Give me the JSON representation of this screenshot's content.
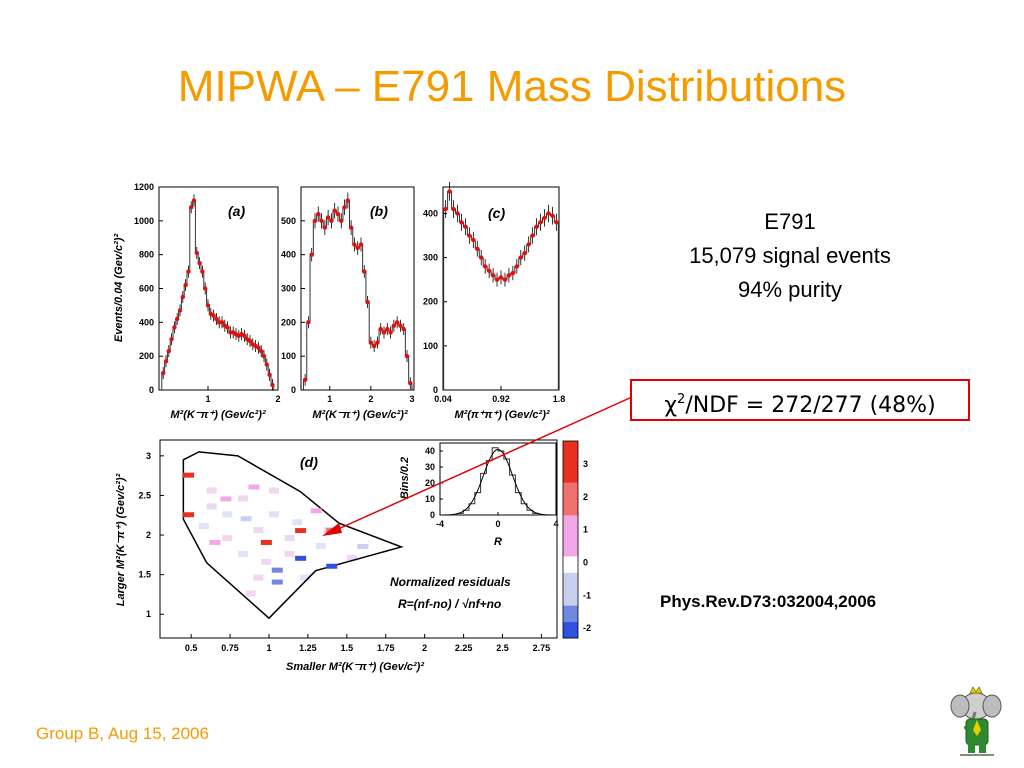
{
  "slide": {
    "title": "MIPWA – E791 Mass Distributions",
    "info_lines": [
      "E791",
      "15,079 signal events",
      "94% purity"
    ],
    "chi2_text": "/NDF = 272/277 (48%)",
    "chi2_symbol": "χ",
    "chi2_exp": "2",
    "reference": "Phys.Rev.D73:032004,2006",
    "footer": "Group B, Aug 15, 2006",
    "mascot_icon": "elephant-mascot-icon",
    "title_color": "#f59b00",
    "highlight_color": "#e00000"
  },
  "chart_data": [
    {
      "type": "histogram",
      "panel_label": "(a)",
      "ylabel": "Events/0.04 (Gev/c²)²",
      "xlabel": "M²(K⁻π⁺) (Gev/c²)²",
      "xlim": [
        0.3,
        2.0
      ],
      "ylim": [
        0,
        1200
      ],
      "xticks": [
        1,
        2
      ],
      "yticks": [
        0,
        200,
        400,
        600,
        800,
        1000,
        1200
      ],
      "x": [
        0.36,
        0.4,
        0.44,
        0.48,
        0.52,
        0.56,
        0.6,
        0.64,
        0.68,
        0.72,
        0.76,
        0.8,
        0.84,
        0.88,
        0.92,
        0.96,
        1.0,
        1.04,
        1.08,
        1.12,
        1.16,
        1.2,
        1.24,
        1.28,
        1.32,
        1.36,
        1.4,
        1.44,
        1.48,
        1.52,
        1.56,
        1.6,
        1.64,
        1.68,
        1.72,
        1.76,
        1.8,
        1.84,
        1.88,
        1.92
      ],
      "values": [
        100,
        170,
        230,
        300,
        370,
        420,
        470,
        550,
        620,
        700,
        1080,
        1120,
        810,
        750,
        700,
        600,
        500,
        450,
        440,
        420,
        400,
        400,
        380,
        370,
        340,
        340,
        330,
        320,
        330,
        320,
        300,
        290,
        270,
        260,
        250,
        230,
        200,
        150,
        90,
        30
      ]
    },
    {
      "type": "histogram",
      "panel_label": "(b)",
      "ylabel": "",
      "xlabel": "M²(K⁻π⁺) (Gev/c²)²",
      "xlim": [
        0.3,
        3.05
      ],
      "ylim": [
        0,
        600
      ],
      "xticks": [
        1,
        2,
        3
      ],
      "yticks": [
        0,
        100,
        200,
        300,
        400,
        500
      ],
      "x": [
        0.4,
        0.48,
        0.56,
        0.64,
        0.72,
        0.8,
        0.88,
        0.96,
        1.04,
        1.12,
        1.2,
        1.28,
        1.36,
        1.44,
        1.52,
        1.6,
        1.68,
        1.76,
        1.84,
        1.92,
        2.0,
        2.08,
        2.16,
        2.24,
        2.32,
        2.4,
        2.48,
        2.56,
        2.64,
        2.72,
        2.8,
        2.88,
        2.96
      ],
      "values": [
        30,
        200,
        400,
        500,
        520,
        500,
        480,
        510,
        500,
        530,
        520,
        500,
        540,
        560,
        480,
        430,
        420,
        430,
        350,
        260,
        140,
        130,
        140,
        180,
        170,
        180,
        170,
        190,
        200,
        190,
        180,
        100,
        20
      ]
    },
    {
      "type": "histogram",
      "panel_label": "(c)",
      "ylabel": "",
      "xlabel": "M²(π⁺π⁺) (Gev/c²)²",
      "xlim": [
        0.04,
        1.8
      ],
      "ylim": [
        0,
        460
      ],
      "xticks": [
        0.04,
        0.92,
        1.8
      ],
      "yticks": [
        0,
        100,
        200,
        300,
        400
      ],
      "x": [
        0.08,
        0.14,
        0.2,
        0.26,
        0.32,
        0.38,
        0.44,
        0.5,
        0.56,
        0.62,
        0.68,
        0.74,
        0.8,
        0.86,
        0.92,
        0.98,
        1.04,
        1.1,
        1.16,
        1.22,
        1.28,
        1.34,
        1.4,
        1.46,
        1.52,
        1.58,
        1.64,
        1.7,
        1.76
      ],
      "values": [
        410,
        450,
        410,
        400,
        380,
        370,
        350,
        340,
        320,
        300,
        280,
        270,
        260,
        250,
        255,
        250,
        260,
        265,
        280,
        300,
        310,
        330,
        350,
        370,
        380,
        390,
        400,
        395,
        380
      ]
    },
    {
      "type": "heatmap",
      "panel_label": "(d)",
      "title": "Normalized residuals",
      "formula": "R=(nf-no) / √nf+no",
      "xlabel": "Smaller M²(K⁻π⁺) (Gev/c²)²",
      "ylabel": "Larger M²(K⁻π⁺) (Gev/c²)²",
      "xlim": [
        0.3,
        2.85
      ],
      "ylim": [
        0.7,
        3.2
      ],
      "xticks": [
        "0.5",
        "0.75",
        "1",
        "1.25",
        "1.5",
        "1.75",
        "2",
        "2.25",
        "2.5",
        "2.75"
      ],
      "yticks": [
        "1",
        "1.5",
        "2",
        "2.5",
        "3"
      ],
      "zticks": [
        "-2",
        "-1",
        "0",
        "1",
        "2",
        "3"
      ],
      "zlim": [
        -2.3,
        3.7
      ],
      "residuals": [
        {
          "x": 0.48,
          "y": 2.75,
          "z": 2.6
        },
        {
          "x": 0.48,
          "y": 2.25,
          "z": 3.0
        },
        {
          "x": 1.2,
          "y": 2.05,
          "z": 2.9
        },
        {
          "x": 1.4,
          "y": 2.05,
          "z": 2.4
        },
        {
          "x": 0.98,
          "y": 1.9,
          "z": 2.7
        },
        {
          "x": 1.2,
          "y": 1.7,
          "z": -2.0
        },
        {
          "x": 1.05,
          "y": 1.55,
          "z": -1.7
        },
        {
          "x": 1.4,
          "y": 1.6,
          "z": -2.1
        },
        {
          "x": 1.05,
          "y": 1.4,
          "z": -1.4
        },
        {
          "x": 0.72,
          "y": 2.45,
          "z": 0.8
        },
        {
          "x": 0.85,
          "y": 2.2,
          "z": -0.6
        },
        {
          "x": 0.65,
          "y": 1.9,
          "z": 0.9
        },
        {
          "x": 1.6,
          "y": 1.85,
          "z": -0.7
        },
        {
          "x": 0.9,
          "y": 2.6,
          "z": 0.6
        },
        {
          "x": 1.3,
          "y": 2.3,
          "z": 0.7
        }
      ],
      "boundary_vertices": [
        [
          0.45,
          2.95
        ],
        [
          0.55,
          3.05
        ],
        [
          0.8,
          3.0
        ],
        [
          1.2,
          2.55
        ],
        [
          1.45,
          2.15
        ],
        [
          1.85,
          1.85
        ],
        [
          1.3,
          1.55
        ],
        [
          1.0,
          0.95
        ],
        [
          0.6,
          1.65
        ],
        [
          0.45,
          2.2
        ]
      ],
      "inset": {
        "type": "histogram",
        "ylabel": "Bins/0.2",
        "xlabel": "R",
        "xlim": [
          -4,
          4
        ],
        "ylim": [
          0,
          45
        ],
        "xticks": [
          -4,
          0,
          4
        ],
        "yticks": [
          0,
          10,
          20,
          30,
          40
        ],
        "x": [
          -3.0,
          -2.6,
          -2.2,
          -1.8,
          -1.4,
          -1.0,
          -0.6,
          -0.2,
          0.2,
          0.6,
          1.0,
          1.4,
          1.8,
          2.2,
          2.6,
          3.0
        ],
        "values": [
          0,
          1,
          3,
          7,
          14,
          26,
          34,
          42,
          40,
          35,
          25,
          14,
          7,
          3,
          1,
          0
        ]
      }
    }
  ]
}
